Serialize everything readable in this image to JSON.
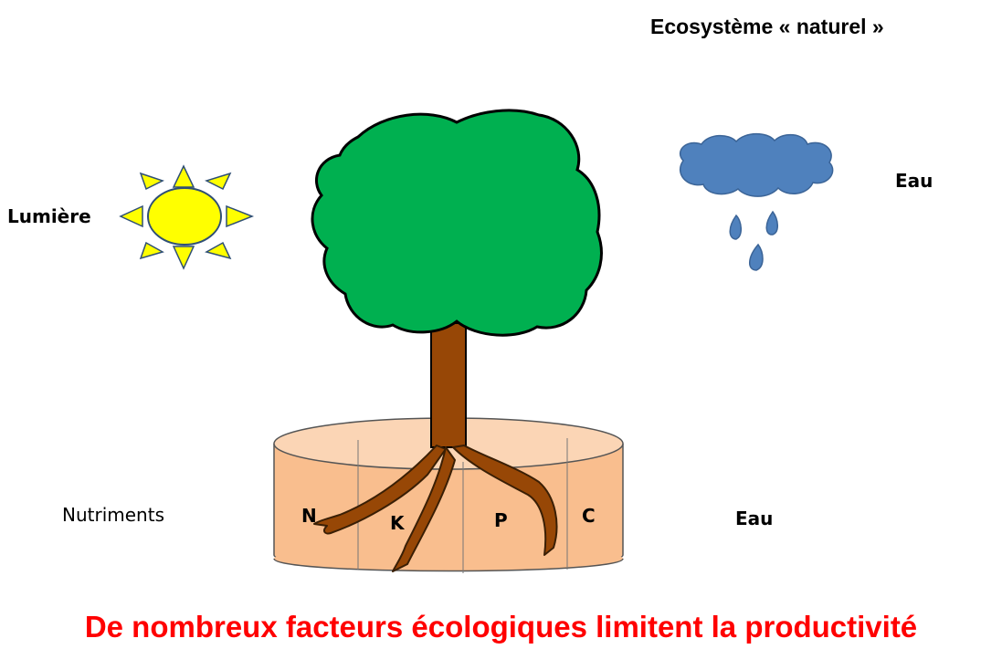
{
  "title": "Ecosystème « naturel »",
  "labels": {
    "light": "Lumière",
    "water_top": "Eau",
    "nutrients": "Nutriments",
    "water_bottom": "Eau"
  },
  "soil_nutrients": [
    "N",
    "K",
    "P",
    "C"
  ],
  "caption": "De nombreux facteurs écologiques limitent la productivité",
  "colors": {
    "foliage": "#00b050",
    "trunk": "#974706",
    "sun": "#ffff00",
    "cloud": "#4f81bd",
    "soil": "#f9be8e",
    "caption": "#ff0000"
  }
}
